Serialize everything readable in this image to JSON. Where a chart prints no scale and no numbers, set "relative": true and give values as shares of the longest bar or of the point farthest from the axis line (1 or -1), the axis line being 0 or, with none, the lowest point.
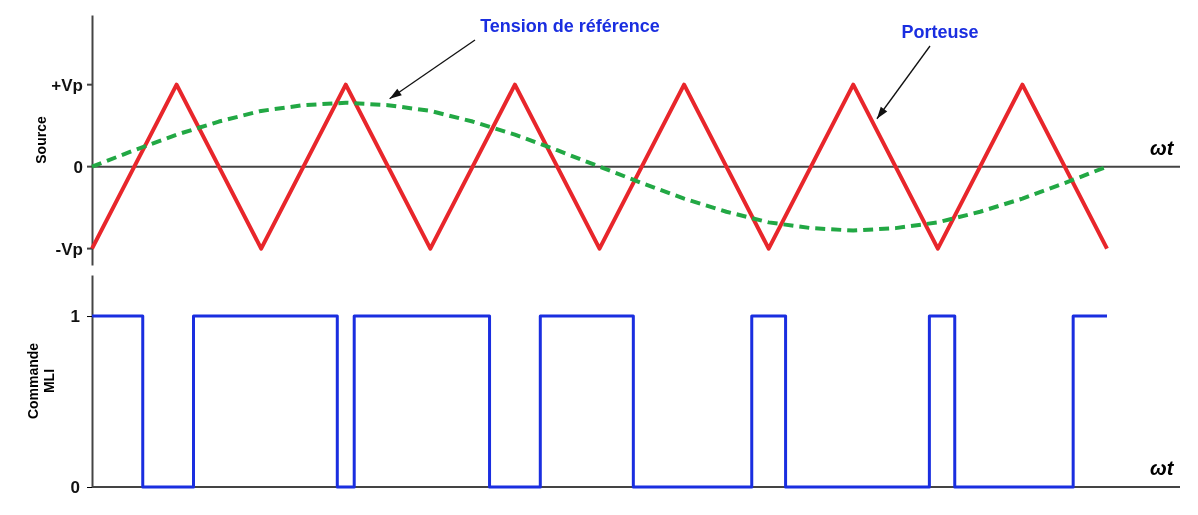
{
  "chart_data": [
    {
      "type": "line",
      "xlabel": "ωt",
      "ylabel": "Source",
      "relative": true,
      "annotations": [
        "+Vp",
        "0",
        "-Vp"
      ],
      "categories": [
        null,
        null,
        null,
        null,
        null,
        null,
        null,
        null,
        null,
        null,
        null,
        null,
        null,
        null,
        null,
        null,
        null,
        null,
        null,
        null,
        null,
        null,
        null,
        null,
        null
      ],
      "tick_labels": "y",
      "grid": false,
      "legend": false,
      "marker": "none",
      "series": [
        {
          "name": "Porteuse",
          "color": "#e8262b",
          "line_style": "solid",
          "values": [
            -1,
            0,
            1,
            0,
            -1,
            0,
            1,
            0,
            -1,
            0,
            1,
            0,
            -1,
            0,
            1,
            0,
            -1,
            0,
            1,
            0,
            -1,
            0,
            1,
            0,
            -1
          ]
        },
        {
          "name": "Tension de référence",
          "color": "#22a844",
          "line_style": "dashed",
          "values": [
            0,
            0.2,
            0.39,
            0.55,
            0.68,
            0.75,
            0.78,
            0.75,
            0.68,
            0.55,
            0.39,
            0.2,
            0,
            -0.2,
            -0.39,
            -0.55,
            -0.68,
            -0.75,
            -0.78,
            -0.75,
            -0.68,
            -0.55,
            -0.39,
            -0.2,
            0
          ]
        }
      ]
    },
    {
      "type": "step",
      "xlabel": "ωt",
      "ylabel": "Commande MLI",
      "ylim": [
        0,
        1.24
      ],
      "categories": [
        null,
        null,
        null,
        null,
        null,
        null,
        null,
        null,
        null,
        null,
        null,
        null,
        null,
        null,
        null,
        null,
        null,
        null,
        null,
        null,
        null,
        null,
        null,
        null,
        null,
        null,
        null,
        null,
        null,
        null,
        null,
        null,
        null,
        null,
        null,
        null,
        null,
        null,
        null,
        null,
        null,
        null,
        null,
        null,
        null,
        null,
        null,
        null,
        null,
        null,
        null,
        null,
        null,
        null,
        null,
        null,
        null,
        null,
        null,
        null,
        null,
        null,
        null,
        null,
        null,
        null,
        null,
        null,
        null,
        null,
        null,
        null,
        null,
        null,
        null,
        null,
        null,
        null,
        null,
        null,
        null,
        null,
        null,
        null,
        null,
        null,
        null,
        null,
        null,
        null,
        null,
        null,
        null,
        null,
        null,
        null,
        null,
        null,
        null,
        null,
        null,
        null,
        null,
        null,
        null,
        null,
        null,
        null,
        null,
        null,
        null,
        null,
        null,
        null,
        null,
        null,
        null,
        null,
        null,
        null,
        null
      ],
      "yticks": [
        {
          "value": 1,
          "label": "1"
        },
        {
          "value": 0,
          "label": "0"
        }
      ],
      "tick_labels": "y",
      "grid": false,
      "legend": false,
      "marker": "none",
      "series": [
        {
          "color": "#1a2ee0",
          "line_style": "solid",
          "values": [
            1,
            1,
            1,
            1,
            1,
            1,
            0,
            0,
            0,
            0,
            0,
            0,
            1,
            1,
            1,
            1,
            1,
            1,
            1,
            1,
            1,
            1,
            1,
            1,
            1,
            1,
            1,
            1,
            1,
            0,
            0,
            1,
            1,
            1,
            1,
            1,
            1,
            1,
            1,
            1,
            1,
            1,
            1,
            1,
            1,
            1,
            1,
            0,
            0,
            0,
            0,
            0,
            0,
            1,
            1,
            1,
            1,
            1,
            1,
            1,
            1,
            1,
            1,
            1,
            0,
            0,
            0,
            0,
            0,
            0,
            0,
            0,
            0,
            0,
            0,
            0,
            0,
            0,
            1,
            1,
            1,
            1,
            0,
            0,
            0,
            0,
            0,
            0,
            0,
            0,
            0,
            0,
            0,
            0,
            0,
            0,
            0,
            0,
            0,
            1,
            1,
            1,
            0,
            0,
            0,
            0,
            0,
            0,
            0,
            0,
            0,
            0,
            0,
            0,
            0,
            0,
            1,
            1,
            1,
            1,
            1
          ]
        }
      ]
    }
  ]
}
